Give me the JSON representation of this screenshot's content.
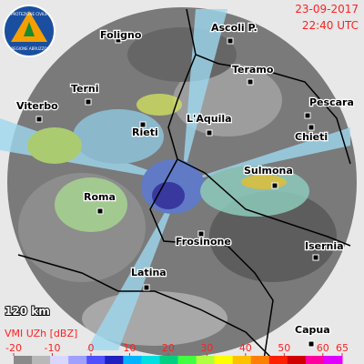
{
  "header": {
    "date": "23-09-2017",
    "time": "22:40 UTC"
  },
  "logo": {
    "line1": "PROTEZIONE CIVILE",
    "line2": "REGIONE ABRUZZO"
  },
  "cities": [
    "Foligno",
    "Ascoli P.",
    "Teramo",
    "Pescara",
    "Viterbo",
    "Terni",
    "Rieti",
    "L'Aquila",
    "Chieti",
    "Sulmona",
    "Roma",
    "Frosinone",
    "Isernia",
    "Latina",
    "Capua"
  ],
  "range_label": "120 km",
  "legend": {
    "title": "VMI UZh [dBZ]",
    "ticks": [
      -20,
      -10,
      0,
      10,
      20,
      30,
      40,
      50,
      60,
      65
    ],
    "range": [
      -20,
      65
    ],
    "colors": [
      "#8a8a8a",
      "#b8b8b8",
      "#d8d8ff",
      "#9fa0ff",
      "#5050ff",
      "#2020c0",
      "#00b4ff",
      "#00e0e0",
      "#00d080",
      "#40ff40",
      "#b0ff40",
      "#ffff00",
      "#ffc000",
      "#ff8000",
      "#ff2000",
      "#d00000",
      "#ff00a0",
      "#e000ff"
    ]
  }
}
